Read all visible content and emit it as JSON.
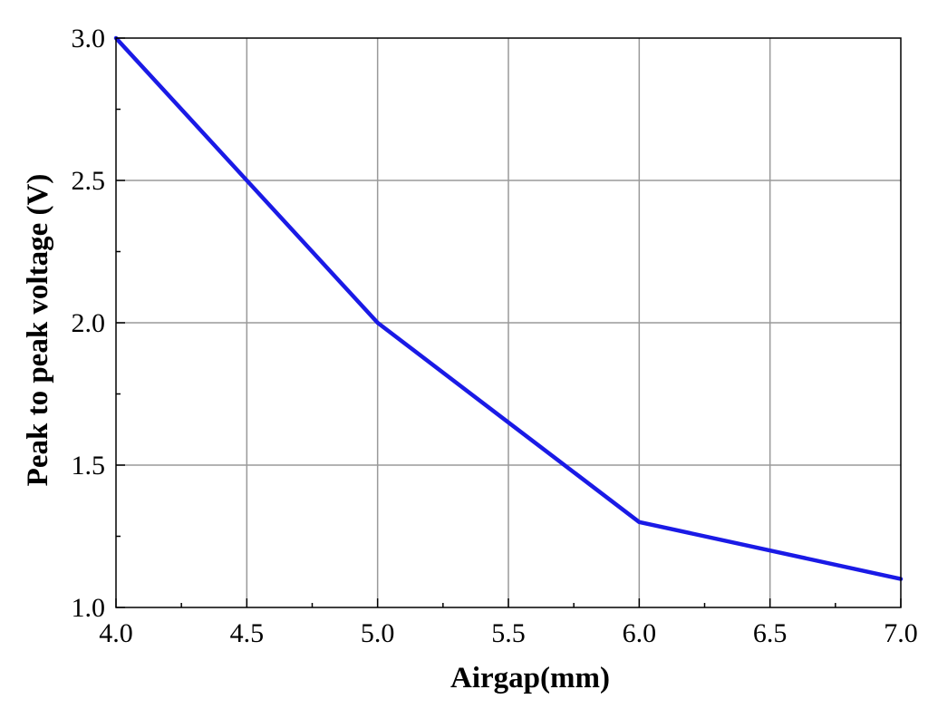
{
  "chart_data": {
    "type": "line",
    "title": "",
    "xlabel": "Airgap(mm)",
    "ylabel": "Peak to peak voltage (V)",
    "xlim": [
      4.0,
      7.0
    ],
    "ylim": [
      1.0,
      3.0
    ],
    "x_ticks": [
      4.0,
      4.5,
      5.0,
      5.5,
      6.0,
      6.5,
      7.0
    ],
    "x_tick_labels": [
      "4.0",
      "4.5",
      "5.0",
      "5.5",
      "6.0",
      "6.5",
      "7.0"
    ],
    "y_ticks": [
      1.0,
      1.5,
      2.0,
      2.5,
      3.0
    ],
    "y_tick_labels": [
      "1.0",
      "1.5",
      "2.0",
      "2.5",
      "3.0"
    ],
    "grid": true,
    "legend": "none",
    "series": [
      {
        "color": "#1a1ae6",
        "x": [
          4.0,
          4.5,
          5.0,
          5.5,
          6.0,
          6.5,
          7.0
        ],
        "y": [
          3.0,
          2.5,
          2.0,
          1.65,
          1.3,
          1.2,
          1.1
        ]
      }
    ]
  }
}
